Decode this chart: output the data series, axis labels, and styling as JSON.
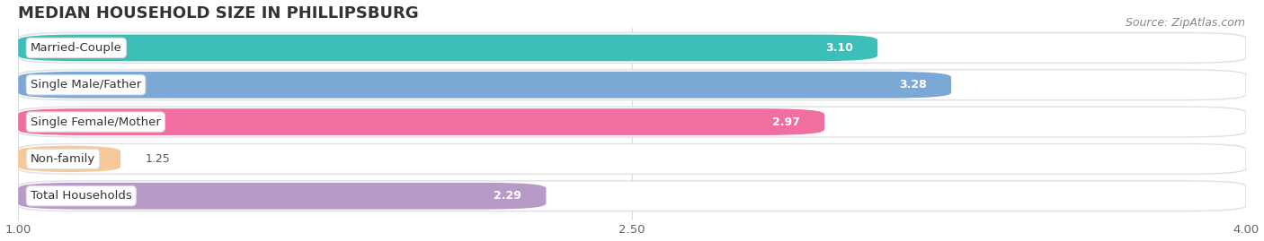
{
  "title": "MEDIAN HOUSEHOLD SIZE IN PHILLIPSBURG",
  "source": "Source: ZipAtlas.com",
  "categories": [
    "Married-Couple",
    "Single Male/Father",
    "Single Female/Mother",
    "Non-family",
    "Total Households"
  ],
  "values": [
    3.1,
    3.28,
    2.97,
    1.25,
    2.29
  ],
  "bar_colors": [
    "#3bbfb8",
    "#7ba8d4",
    "#f06fa0",
    "#f5c99a",
    "#b89ac8"
  ],
  "xlim": [
    1.0,
    4.0
  ],
  "xticks": [
    1.0,
    2.5,
    4.0
  ],
  "xtick_labels": [
    "1.00",
    "2.50",
    "4.00"
  ],
  "background_color": "#ffffff",
  "bar_bg_color": "#f0f0f0",
  "title_fontsize": 13,
  "label_fontsize": 9.5,
  "value_fontsize": 9,
  "source_fontsize": 9
}
